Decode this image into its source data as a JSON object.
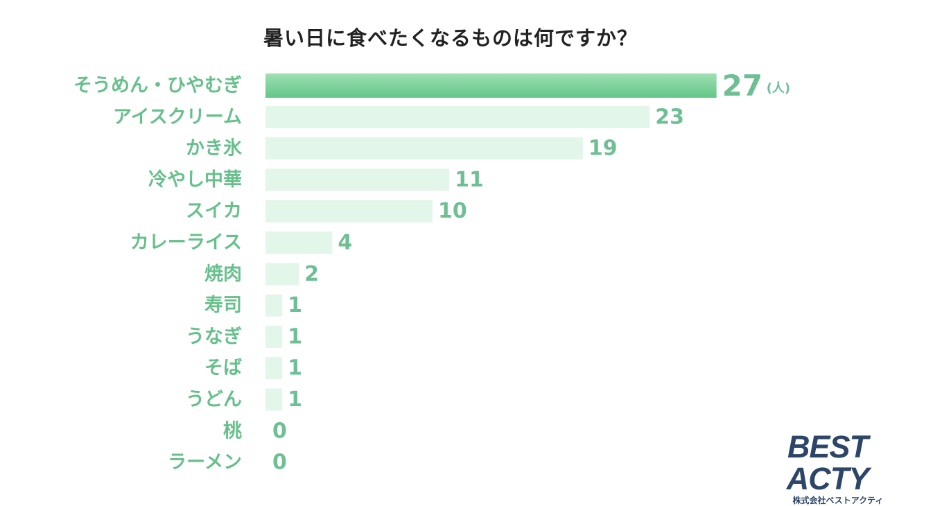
{
  "chart_data": {
    "type": "bar",
    "orientation": "horizontal",
    "title": "暑い日に食べたくなるものは何ですか？",
    "categories": [
      "そうめん・ひやむぎ",
      "アイスクリーム",
      "かき氷",
      "冷やし中華",
      "スイカ",
      "カレーライス",
      "焼肉",
      "寿司",
      "うなぎ",
      "そば",
      "うどん",
      "桃",
      "ラーメン"
    ],
    "values": [
      27,
      23,
      19,
      11,
      10,
      4,
      2,
      1,
      1,
      1,
      1,
      0,
      0
    ],
    "value_labels": [
      "27",
      "23",
      "19",
      "11",
      "10",
      "4",
      "2",
      "1",
      "1",
      "1",
      "1",
      "0",
      "0"
    ],
    "unit": "(人)",
    "xlim": [
      0,
      27
    ],
    "grid": false,
    "colors": {
      "highlight_bar_start": "#9fe0b2",
      "highlight_bar_end": "#62c688",
      "bar": "#e3f6ea",
      "label": "#67c08c",
      "value_label": "#6fbf95"
    }
  },
  "brand": {
    "name": "BEST ACTY",
    "company": "株式会社ベストアクティ",
    "color": "#2d4566"
  }
}
